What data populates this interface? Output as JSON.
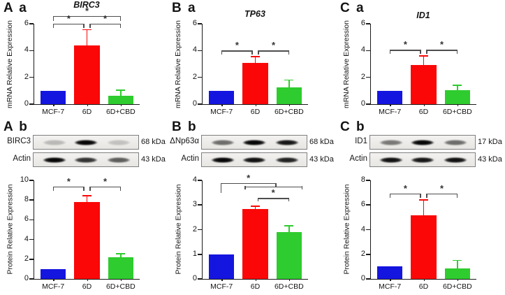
{
  "figure": {
    "background": "#ffffff",
    "categories": [
      "MCF-7",
      "6D",
      "6D+CBD"
    ],
    "bar_colors": {
      "MCF-7": "#1515e0",
      "6D": "#fb0707",
      "6D+CBD": "#2ecc2e"
    },
    "axis_color": "#1a1a1a",
    "bracket_color": "#4d4d4d",
    "significance_symbol": "*"
  },
  "chart_data": [
    {
      "type": "bar",
      "panel_label": "A a",
      "title": "BIRC3",
      "ylabel": "mRNA Relative Expression",
      "xlabel": "",
      "categories": [
        "MCF-7",
        "6D",
        "6D+CBD"
      ],
      "values": [
        1.0,
        4.4,
        0.65
      ],
      "errors": [
        0,
        1.15,
        0.4
      ],
      "bar_colors": [
        "#1515e0",
        "#fb0707",
        "#2ecc2e"
      ],
      "ylim": [
        0,
        6
      ],
      "yticks": [
        0,
        2,
        4,
        6
      ],
      "significance_brackets": [
        {
          "type": "bracket",
          "x1": 0.18,
          "x2": 0.82,
          "y": 6.58,
          "label": "*",
          "d1": 7,
          "d2": 7
        },
        {
          "type": "bracket",
          "x1": 0.18,
          "x2": 0.475,
          "y": 6.02,
          "label": "*",
          "d1": 6,
          "d2": 6
        },
        {
          "type": "bracket",
          "x1": 0.525,
          "x2": 0.82,
          "y": 6.02,
          "label": "*",
          "d1": 6,
          "d2": 6
        }
      ]
    },
    {
      "type": "bar",
      "panel_label": "B a",
      "title": "TP63",
      "ylabel": "mRNA Relative Expression",
      "xlabel": "",
      "categories": [
        "MCF-7",
        "6D",
        "6D+CBD"
      ],
      "values": [
        1.0,
        3.1,
        1.25
      ],
      "errors": [
        0,
        0.45,
        0.55
      ],
      "bar_colors": [
        "#1515e0",
        "#fb0707",
        "#2ecc2e"
      ],
      "ylim": [
        0,
        6
      ],
      "yticks": [
        0,
        2,
        4,
        6
      ],
      "significance_brackets": [
        {
          "type": "bracket",
          "x1": 0.18,
          "x2": 0.475,
          "y": 4.0,
          "label": "*",
          "d1": 6,
          "d2": 6
        },
        {
          "type": "bracket",
          "x1": 0.525,
          "x2": 0.82,
          "y": 4.0,
          "label": "*",
          "d1": 6,
          "d2": 6
        }
      ]
    },
    {
      "type": "bar",
      "panel_label": "C a",
      "title": "ID1",
      "ylabel": "mRNA Relative Expression",
      "xlabel": "",
      "categories": [
        "MCF-7",
        "6D",
        "6D+CBD"
      ],
      "values": [
        1.0,
        2.9,
        1.05
      ],
      "errors": [
        0,
        0.7,
        0.35
      ],
      "bar_colors": [
        "#1515e0",
        "#fb0707",
        "#2ecc2e"
      ],
      "ylim": [
        0,
        6
      ],
      "yticks": [
        0,
        2,
        4,
        6
      ],
      "significance_brackets": [
        {
          "type": "bracket",
          "x1": 0.18,
          "x2": 0.475,
          "y": 4.05,
          "label": "*",
          "d1": 6,
          "d2": 6
        },
        {
          "type": "bracket",
          "x1": 0.525,
          "x2": 0.82,
          "y": 4.05,
          "label": "*",
          "d1": 6,
          "d2": 6
        }
      ]
    },
    {
      "type": "bar",
      "title": "",
      "ylabel": "Protein Relative Expression",
      "xlabel": "",
      "categories": [
        "MCF-7",
        "6D",
        "6D+CBD"
      ],
      "values": [
        1.0,
        7.8,
        2.2
      ],
      "errors": [
        0,
        0.65,
        0.35
      ],
      "bar_colors": [
        "#1515e0",
        "#fb0707",
        "#2ecc2e"
      ],
      "ylim": [
        0,
        10
      ],
      "yticks": [
        0,
        2,
        4,
        6,
        8,
        10
      ],
      "significance_brackets": [
        {
          "type": "bracket",
          "x1": 0.18,
          "x2": 0.475,
          "y": 9.35,
          "label": "*",
          "d1": 6,
          "d2": 6
        },
        {
          "type": "bracket",
          "x1": 0.525,
          "x2": 0.82,
          "y": 9.35,
          "label": "*",
          "d1": 6,
          "d2": 6
        }
      ]
    },
    {
      "type": "bar",
      "title": "",
      "ylabel": "Protein Relative Expression",
      "xlabel": "",
      "categories": [
        "MCF-7",
        "6D",
        "6D+CBD"
      ],
      "values": [
        1.0,
        2.83,
        1.9
      ],
      "errors": [
        0,
        0.12,
        0.25
      ],
      "bar_colors": [
        "#1515e0",
        "#fb0707",
        "#2ecc2e"
      ],
      "ylim": [
        0,
        4
      ],
      "yticks": [
        0,
        1,
        2,
        3,
        4
      ],
      "significance_brackets": [
        {
          "type": "bracket",
          "x1": 0.17,
          "x2": 0.7,
          "y": 3.9,
          "label": "*",
          "d1": 14,
          "d2": 5
        },
        {
          "type": "capline",
          "x1": 0.4,
          "x2": 0.95,
          "y": 3.74
        },
        {
          "type": "bracket",
          "x1": 0.52,
          "x2": 0.82,
          "y": 3.28,
          "label": "*",
          "d1": 5,
          "d2": 5
        }
      ]
    },
    {
      "type": "bar",
      "title": "",
      "ylabel": "Protein Relative Expression",
      "xlabel": "",
      "categories": [
        "MCF-7",
        "6D",
        "6D+CBD"
      ],
      "values": [
        1.0,
        5.15,
        0.85
      ],
      "errors": [
        0,
        1.25,
        0.65
      ],
      "bar_colors": [
        "#1515e0",
        "#fb0707",
        "#2ecc2e"
      ],
      "ylim": [
        0,
        8
      ],
      "yticks": [
        0,
        2,
        4,
        6,
        8
      ],
      "significance_brackets": [
        {
          "type": "bracket",
          "x1": 0.18,
          "x2": 0.475,
          "y": 6.95,
          "label": "*",
          "d1": 6,
          "d2": 6
        },
        {
          "type": "bracket",
          "x1": 0.525,
          "x2": 0.82,
          "y": 6.95,
          "label": "*",
          "d1": 6,
          "d2": 6
        }
      ]
    }
  ],
  "blots": [
    {
      "label": "A b",
      "rows": [
        {
          "protein": "BIRC3",
          "kda": "68 kDa",
          "bands": [
            0.22,
            1,
            0.18
          ]
        },
        {
          "protein": "Actin",
          "kda": "43 kDa",
          "bands": [
            1,
            0.8,
            0.62
          ]
        }
      ]
    },
    {
      "label": "B b",
      "rows": [
        {
          "protein": "ΔNp63α",
          "kda": "68 kDa",
          "bands": [
            0.55,
            1,
            0.92
          ]
        },
        {
          "protein": "Actin",
          "kda": "43 kDa",
          "bands": [
            1,
            0.95,
            0.88
          ]
        }
      ]
    },
    {
      "label": "C b",
      "rows": [
        {
          "protein": "ID1",
          "kda": "17 kDa",
          "bands": [
            0.5,
            1,
            0.55
          ]
        },
        {
          "protein": "Actin",
          "kda": "43 kDa",
          "bands": [
            0.95,
            0.92,
            0.95
          ]
        }
      ]
    }
  ]
}
